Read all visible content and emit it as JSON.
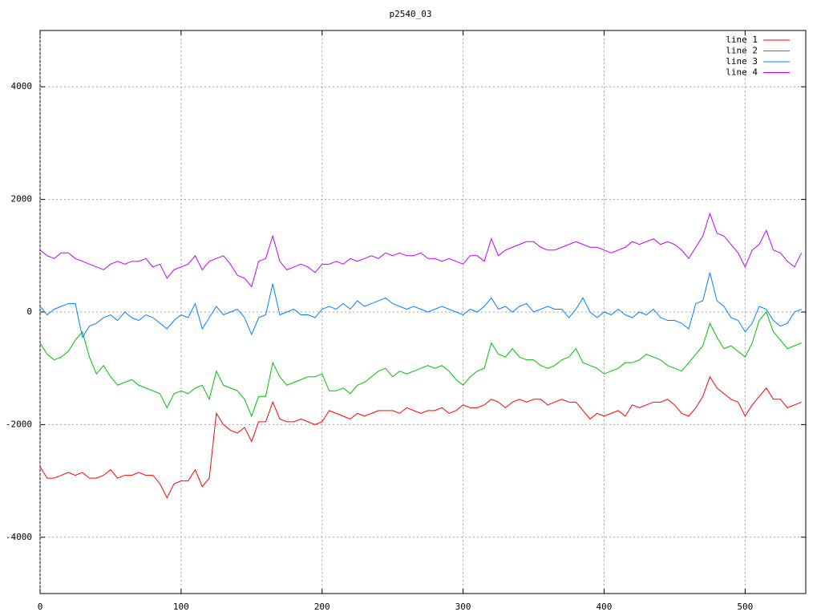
{
  "chart_data": {
    "type": "line",
    "title": "p2540_03",
    "x": [
      0,
      5,
      10,
      15,
      20,
      25,
      30,
      35,
      40,
      45,
      50,
      55,
      60,
      65,
      70,
      75,
      80,
      85,
      90,
      95,
      100,
      105,
      110,
      115,
      120,
      125,
      130,
      135,
      140,
      145,
      150,
      155,
      160,
      165,
      170,
      175,
      180,
      185,
      190,
      195,
      200,
      205,
      210,
      215,
      220,
      225,
      230,
      235,
      240,
      245,
      250,
      255,
      260,
      265,
      270,
      275,
      280,
      285,
      290,
      295,
      300,
      305,
      310,
      315,
      320,
      325,
      330,
      335,
      340,
      345,
      350,
      355,
      360,
      365,
      370,
      375,
      380,
      385,
      390,
      395,
      400,
      405,
      410,
      415,
      420,
      425,
      430,
      435,
      440,
      445,
      450,
      455,
      460,
      465,
      470,
      475,
      480,
      485,
      490,
      495,
      500,
      505,
      510,
      515,
      520,
      525,
      530,
      535,
      540
    ],
    "series": [
      {
        "name": "line 1",
        "color": "#ff0000",
        "values": [
          -2750,
          -2950,
          -2950,
          -2900,
          -2850,
          -2900,
          -2850,
          -2950,
          -2950,
          -2900,
          -2800,
          -2950,
          -2900,
          -2900,
          -2850,
          -2900,
          -2900,
          -3050,
          -3300,
          -3050,
          -3000,
          -3000,
          -2800,
          -3100,
          -2950,
          -1800,
          -2000,
          -2100,
          -2150,
          -2050,
          -2300,
          -1950,
          -1950,
          -1600,
          -1900,
          -1950,
          -1950,
          -1900,
          -1950,
          -2000,
          -1950,
          -1750,
          -1800,
          -1850,
          -1900,
          -1800,
          -1850,
          -1800,
          -1750,
          -1750,
          -1750,
          -1800,
          -1700,
          -1750,
          -1800,
          -1750,
          -1750,
          -1700,
          -1800,
          -1750,
          -1650,
          -1700,
          -1700,
          -1650,
          -1550,
          -1600,
          -1700,
          -1600,
          -1550,
          -1600,
          -1550,
          -1550,
          -1650,
          -1600,
          -1550,
          -1600,
          -1600,
          -1750,
          -1900,
          -1800,
          -1850,
          -1800,
          -1750,
          -1850,
          -1650,
          -1700,
          -1650,
          -1600,
          -1600,
          -1550,
          -1650,
          -1800,
          -1850,
          -1700,
          -1500,
          -1150,
          -1350,
          -1450,
          -1550,
          -1600,
          -1850,
          -1650,
          -1500,
          -1350,
          -1550,
          -1550,
          -1700,
          -1650,
          -1600
        ]
      },
      {
        "name": "line 2",
        "color": "#00c000",
        "values": [
          -550,
          -750,
          -850,
          -800,
          -700,
          -500,
          -350,
          -800,
          -1100,
          -950,
          -1150,
          -1300,
          -1250,
          -1200,
          -1300,
          -1350,
          -1400,
          -1450,
          -1700,
          -1450,
          -1400,
          -1450,
          -1350,
          -1300,
          -1550,
          -1050,
          -1300,
          -1350,
          -1400,
          -1550,
          -1850,
          -1500,
          -1500,
          -900,
          -1150,
          -1300,
          -1250,
          -1200,
          -1150,
          -1150,
          -1100,
          -1400,
          -1400,
          -1350,
          -1450,
          -1300,
          -1250,
          -1150,
          -1050,
          -1000,
          -1150,
          -1050,
          -1100,
          -1050,
          -1000,
          -950,
          -1000,
          -950,
          -1050,
          -1200,
          -1300,
          -1150,
          -1050,
          -1000,
          -550,
          -750,
          -800,
          -650,
          -800,
          -850,
          -850,
          -950,
          -1000,
          -950,
          -850,
          -800,
          -650,
          -900,
          -950,
          -1000,
          -1100,
          -1050,
          -1000,
          -900,
          -900,
          -850,
          -750,
          -800,
          -850,
          -950,
          -1000,
          -1050,
          -900,
          -750,
          -600,
          -200,
          -450,
          -650,
          -600,
          -700,
          -800,
          -550,
          -150,
          0,
          -350,
          -500,
          -650,
          -600,
          -550
        ]
      },
      {
        "name": "line 3",
        "color": "#0080ff",
        "values": [
          100,
          -50,
          50,
          100,
          150,
          150,
          -450,
          -250,
          -200,
          -100,
          -50,
          -150,
          0,
          -100,
          -150,
          -50,
          -100,
          -200,
          -300,
          -150,
          -50,
          -100,
          150,
          -300,
          -100,
          100,
          -50,
          0,
          50,
          -100,
          -400,
          -100,
          -50,
          500,
          -50,
          0,
          50,
          -50,
          -50,
          -100,
          50,
          100,
          50,
          150,
          50,
          200,
          100,
          150,
          200,
          250,
          150,
          100,
          50,
          100,
          50,
          0,
          50,
          100,
          50,
          0,
          -50,
          50,
          0,
          100,
          250,
          50,
          100,
          0,
          100,
          150,
          0,
          50,
          100,
          50,
          50,
          -100,
          50,
          250,
          0,
          -100,
          0,
          -50,
          50,
          -50,
          -100,
          0,
          -50,
          50,
          -100,
          -150,
          -150,
          -200,
          -300,
          150,
          200,
          700,
          200,
          100,
          -100,
          -150,
          -350,
          -200,
          100,
          50,
          -150,
          -250,
          -200,
          0,
          50
        ]
      },
      {
        "name": "line 4",
        "color": "#c000ff",
        "values": [
          1100,
          1000,
          950,
          1050,
          1050,
          950,
          900,
          850,
          800,
          750,
          850,
          900,
          850,
          900,
          900,
          950,
          800,
          850,
          600,
          750,
          800,
          850,
          1000,
          750,
          900,
          950,
          1000,
          850,
          650,
          600,
          450,
          900,
          950,
          1350,
          900,
          750,
          800,
          850,
          800,
          700,
          850,
          850,
          900,
          850,
          950,
          900,
          950,
          1000,
          950,
          1050,
          1000,
          1050,
          1000,
          1000,
          1050,
          950,
          950,
          900,
          950,
          900,
          850,
          1000,
          1000,
          900,
          1300,
          1000,
          1100,
          1150,
          1200,
          1250,
          1250,
          1150,
          1100,
          1100,
          1150,
          1200,
          1250,
          1200,
          1150,
          1150,
          1100,
          1050,
          1100,
          1150,
          1250,
          1200,
          1250,
          1300,
          1200,
          1250,
          1200,
          1100,
          950,
          1150,
          1350,
          1750,
          1400,
          1350,
          1200,
          1050,
          800,
          1100,
          1200,
          1450,
          1100,
          1050,
          900,
          800,
          1050
        ]
      }
    ],
    "xlim": [
      0,
      543
    ],
    "ylim": [
      -5000,
      5000
    ],
    "xticks": [
      0,
      100,
      200,
      300,
      400,
      500
    ],
    "yticks": [
      -4000,
      -2000,
      0,
      2000,
      4000
    ],
    "grid": true,
    "legend": "top-right"
  }
}
